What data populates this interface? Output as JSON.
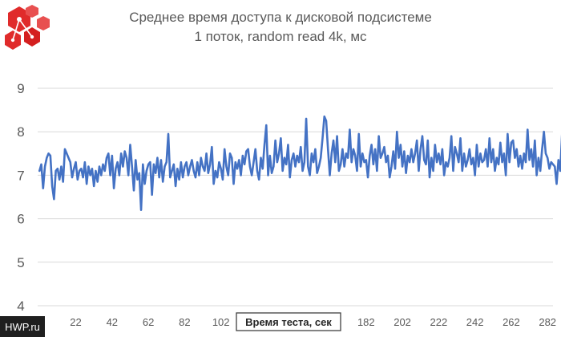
{
  "chart_data": {
    "type": "line",
    "title_line1": "Среднее время доступа к дисковой подсистеме",
    "title_line2": "1 поток, random read 4k, мс",
    "xlabel": "Время теста, сек",
    "ylabel": "",
    "xlim": [
      1,
      285
    ],
    "ylim": [
      4,
      9.5
    ],
    "y_ticks": [
      4,
      5,
      6,
      7,
      8,
      9
    ],
    "x_ticks": [
      22,
      42,
      62,
      82,
      102,
      182,
      202,
      222,
      242,
      262,
      282
    ],
    "grid": true,
    "legend": "none",
    "series": [
      {
        "color": "#4472c4",
        "x_start": 2,
        "x_step": 1,
        "values": [
          7.1,
          7.25,
          6.7,
          7.2,
          7.4,
          7.5,
          7.45,
          6.75,
          6.45,
          7.1,
          7.15,
          6.9,
          7.2,
          6.85,
          7.6,
          7.5,
          7.4,
          7.3,
          6.95,
          7.15,
          7.3,
          6.9,
          7.1,
          7.15,
          6.95,
          7.3,
          6.8,
          7.2,
          7.0,
          7.15,
          6.75,
          7.1,
          6.85,
          7.2,
          7.0,
          7.25,
          7.1,
          7.4,
          7.5,
          7.0,
          7.45,
          6.7,
          7.15,
          7.3,
          7.0,
          7.5,
          7.2,
          7.55,
          7.4,
          7.0,
          7.7,
          7.2,
          6.65,
          7.35,
          6.9,
          7.05,
          6.2,
          7.25,
          6.8,
          7.1,
          7.25,
          7.3,
          6.55,
          7.25,
          7.05,
          7.4,
          6.95,
          7.35,
          6.85,
          7.2,
          7.3,
          7.95,
          6.95,
          7.1,
          7.25,
          6.75,
          7.15,
          6.9,
          7.3,
          6.95,
          7.2,
          7.3,
          7.0,
          7.2,
          7.35,
          7.1,
          6.95,
          7.3,
          7.0,
          7.4,
          7.2,
          7.1,
          7.5,
          7.05,
          7.25,
          7.65,
          6.8,
          7.1,
          6.95,
          7.3,
          7.15,
          6.9,
          7.6,
          7.2,
          7.0,
          7.5,
          7.4,
          6.8,
          7.3,
          7.15,
          7.35,
          7.0,
          7.45,
          7.25,
          7.55,
          7.6,
          7.2,
          7.0,
          7.3,
          7.6,
          7.1,
          6.9,
          7.4,
          7.15,
          7.7,
          8.15,
          7.0,
          7.45,
          7.05,
          7.2,
          7.8,
          7.3,
          7.5,
          7.85,
          7.1,
          7.4,
          7.25,
          7.7,
          6.95,
          7.35,
          7.5,
          7.2,
          7.45,
          7.3,
          7.65,
          7.1,
          7.3,
          8.3,
          7.2,
          7.0,
          7.5,
          7.3,
          7.6,
          7.05,
          7.2,
          7.4,
          7.85,
          8.35,
          8.25,
          7.6,
          7.0,
          7.5,
          7.8,
          7.3,
          7.9,
          7.1,
          7.25,
          7.6,
          7.2,
          7.5,
          7.4,
          8.05,
          7.3,
          7.6,
          7.45,
          7.1,
          7.95,
          7.2,
          7.5,
          7.3,
          7.35,
          6.95,
          7.45,
          7.7,
          7.25,
          7.6,
          7.1,
          7.9,
          7.4,
          7.5,
          7.65,
          7.3,
          7.45,
          6.95,
          7.2,
          7.55,
          7.15,
          8.0,
          7.4,
          7.7,
          7.2,
          7.55,
          7.05,
          7.45,
          7.3,
          7.6,
          7.3,
          7.5,
          7.8,
          7.1,
          7.6,
          7.9,
          7.35,
          7.25,
          7.8,
          6.95,
          7.4,
          7.1,
          7.7,
          7.3,
          7.5,
          7.25,
          7.6,
          7.0,
          7.3,
          7.2,
          7.4,
          7.9,
          7.1,
          7.65,
          7.5,
          7.3,
          7.85,
          7.1,
          7.5,
          7.2,
          7.35,
          7.6,
          7.25,
          7.4,
          7.0,
          7.7,
          7.2,
          7.5,
          7.3,
          7.35,
          7.6,
          7.2,
          7.85,
          7.3,
          7.6,
          7.1,
          7.4,
          7.25,
          7.75,
          7.3,
          7.5,
          7.0,
          7.95,
          7.3,
          7.75,
          7.8,
          7.4,
          7.6,
          7.2,
          7.45,
          7.15,
          7.5,
          7.3,
          8.05,
          7.35,
          7.6,
          7.2,
          7.8,
          7.0,
          7.4,
          7.1,
          7.6,
          8.0,
          7.5,
          7.4,
          7.15,
          7.3,
          7.25,
          7.2,
          6.8,
          7.35,
          7.1,
          7.95,
          7.25,
          7.55,
          7.3,
          7.95,
          7.4,
          7.25,
          7.3
        ]
      }
    ]
  },
  "watermark": "HWP.ru",
  "logo_icon": "hwp-hexagon-logo-icon"
}
